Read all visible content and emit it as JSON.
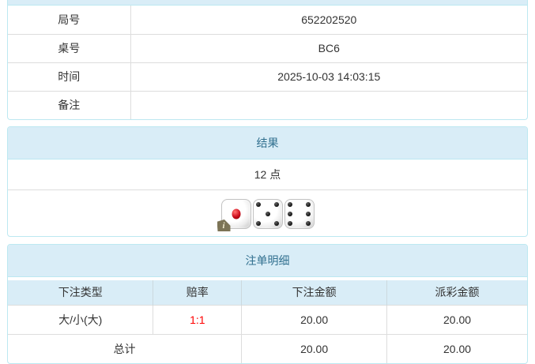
{
  "colors": {
    "panel_border": "#bce8f1",
    "heading_bg": "#d9edf7",
    "heading_text": "#31708f",
    "cell_border": "#dddddd",
    "body_text": "#333333",
    "odds_text": "#ff0000",
    "info_badge_bg": "#7c7456"
  },
  "game_info": {
    "rows": [
      {
        "label": "局号",
        "value": "652202520"
      },
      {
        "label": "桌号",
        "value": "BC6"
      },
      {
        "label": "时间",
        "value": "2025-10-03 14:03:15"
      },
      {
        "label": "备注",
        "value": ""
      }
    ]
  },
  "result": {
    "title": "结果",
    "points": "12 点",
    "dice": [
      1,
      5,
      6
    ],
    "info_badge": "i"
  },
  "bet_details": {
    "title": "注单明细",
    "columns": [
      "下注类型",
      "赔率",
      "下注金额",
      "派彩金额"
    ],
    "rows": [
      {
        "bet_type": "大/小(大)",
        "odds": "1:1",
        "bet_amount": "20.00",
        "payout_amount": "20.00"
      }
    ],
    "total": {
      "label": "总计",
      "bet_amount": "20.00",
      "payout_amount": "20.00"
    }
  }
}
